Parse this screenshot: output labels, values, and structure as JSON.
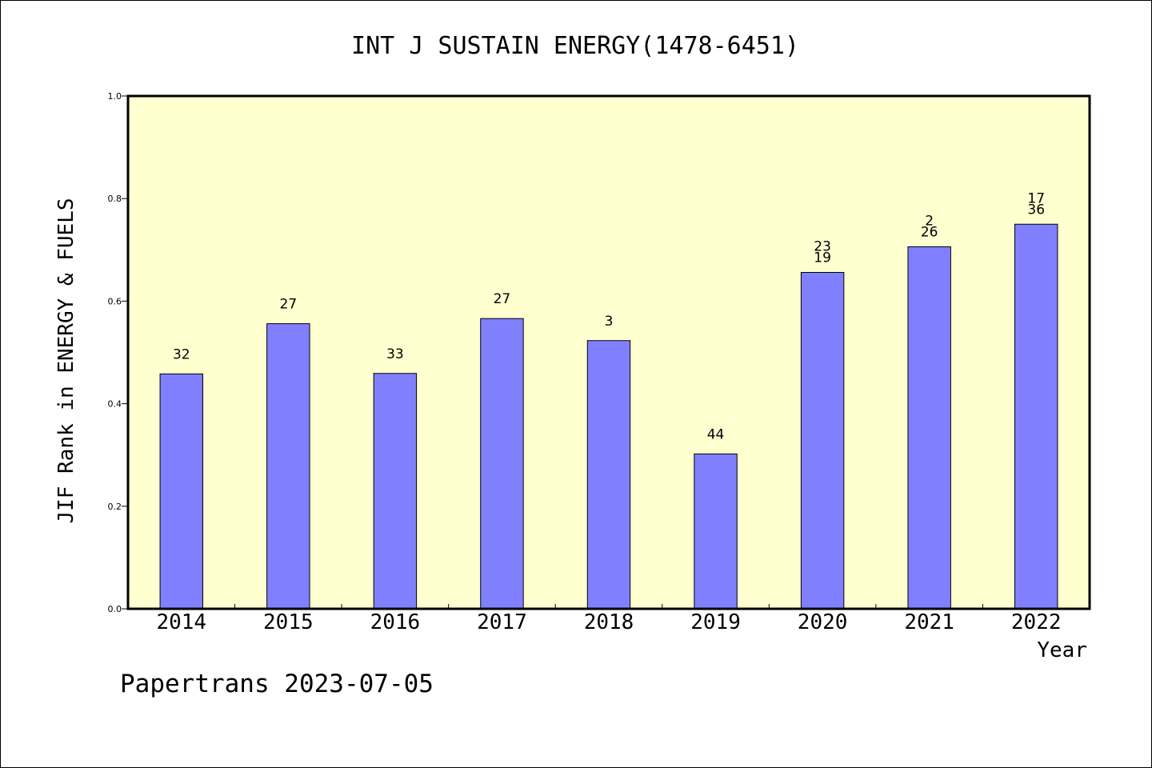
{
  "chart_data": {
    "type": "bar",
    "title": "INT J SUSTAIN ENERGY(1478-6451)",
    "xlabel": "Year",
    "ylabel": "JIF Rank in ENERGY & FUELS",
    "footer": "Papertrans 2023-07-05",
    "ylim": [
      0,
      1.0
    ],
    "yticks": [
      "0.0",
      "0.2",
      "0.4",
      "0.6",
      "0.8",
      "1.0"
    ],
    "grid": false,
    "legend": "none",
    "categories": [
      "2014",
      "2015",
      "2016",
      "2017",
      "2018",
      "2019",
      "2020",
      "2021",
      "2022"
    ],
    "values": [
      0.458,
      0.556,
      0.459,
      0.566,
      0.523,
      0.302,
      0.656,
      0.706,
      0.75
    ],
    "labels": [
      [
        "32"
      ],
      [
        "27"
      ],
      [
        "33"
      ],
      [
        "27"
      ],
      [
        "3"
      ],
      [
        "44"
      ],
      [
        "23",
        "19"
      ],
      [
        "2",
        "26"
      ],
      [
        "17",
        "36"
      ]
    ],
    "colors": {
      "plot_background": "#ffffd0",
      "bar_fill": "#8080ff",
      "bar_stroke": "#000000"
    }
  }
}
